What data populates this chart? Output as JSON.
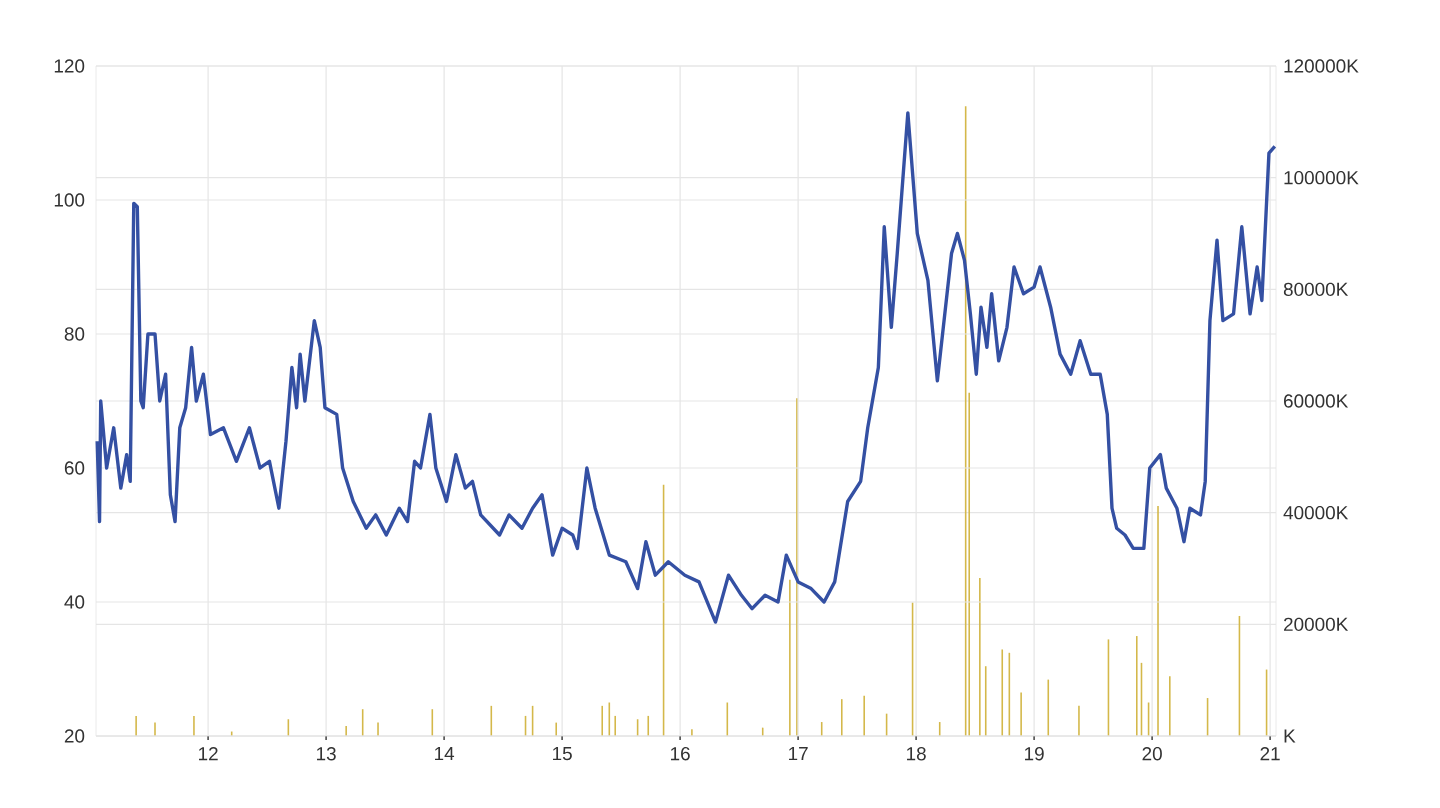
{
  "chart_data": {
    "type": "line",
    "xlim": [
      11.05,
      21.05
    ],
    "xticks": [
      12,
      13,
      14,
      15,
      16,
      17,
      18,
      19,
      20,
      21
    ],
    "ylim": [
      20,
      120
    ],
    "yticks": [
      20,
      40,
      60,
      80,
      100,
      120
    ],
    "y2lim": [
      0,
      120000
    ],
    "y2ticks": [
      {
        "value": 0,
        "label": "K"
      },
      {
        "value": 20000,
        "label": "20000K"
      },
      {
        "value": 40000,
        "label": "40000K"
      },
      {
        "value": 60000,
        "label": "60000K"
      },
      {
        "value": 80000,
        "label": "80000K"
      },
      {
        "value": 100000,
        "label": "100000K"
      },
      {
        "value": 120000,
        "label": "120000K"
      }
    ],
    "grid": true,
    "series": [
      {
        "type": "bar",
        "axis": "y2",
        "color": "#d4b84a",
        "x": [
          11.39,
          11.55,
          11.88,
          12.2,
          12.68,
          13.17,
          13.31,
          13.44,
          13.9,
          14.4,
          14.69,
          14.75,
          14.95,
          15.34,
          15.4,
          15.45,
          15.64,
          15.73,
          15.86,
          16.1,
          16.4,
          16.7,
          16.93,
          16.99,
          17.2,
          17.37,
          17.56,
          17.75,
          17.97,
          18.2,
          18.42,
          18.45,
          18.54,
          18.59,
          18.73,
          18.79,
          18.89,
          19.12,
          19.38,
          19.63,
          19.87,
          19.91,
          19.97,
          20.05,
          20.15,
          20.47,
          20.74,
          20.97
        ],
        "values": [
          3600,
          2400,
          3600,
          800,
          3000,
          1800,
          4800,
          2400,
          4800,
          5400,
          3600,
          5400,
          2400,
          5400,
          6000,
          3600,
          3000,
          3600,
          45000,
          1200,
          6000,
          1500,
          28000,
          60500,
          2500,
          6600,
          7200,
          4000,
          23900,
          2500,
          112800,
          61500,
          28300,
          12500,
          15500,
          14900,
          7800,
          10100,
          5400,
          17300,
          17900,
          13100,
          6000,
          41200,
          10700,
          6800,
          21500,
          11900
        ]
      },
      {
        "color": "#3450a3",
        "x": [
          11.06,
          11.08,
          11.09,
          11.14,
          11.2,
          11.26,
          11.31,
          11.34,
          11.37,
          11.4,
          11.43,
          11.45,
          11.49,
          11.55,
          11.59,
          11.64,
          11.68,
          11.72,
          11.76,
          11.81,
          11.86,
          11.9,
          11.96,
          12.02,
          12.13,
          12.24,
          12.35,
          12.44,
          12.52,
          12.6,
          12.66,
          12.71,
          12.75,
          12.78,
          12.82,
          12.9,
          12.95,
          12.99,
          13.09,
          13.14,
          13.23,
          13.34,
          13.42,
          13.51,
          13.62,
          13.69,
          13.75,
          13.8,
          13.88,
          13.93,
          14.02,
          14.1,
          14.18,
          14.24,
          14.31,
          14.47,
          14.55,
          14.66,
          14.75,
          14.83,
          14.92,
          15.0,
          15.09,
          15.13,
          15.21,
          15.28,
          15.4,
          15.54,
          15.64,
          15.71,
          15.79,
          15.9,
          16.04,
          16.16,
          16.3,
          16.41,
          16.52,
          16.61,
          16.72,
          16.83,
          16.9,
          17.0,
          17.11,
          17.22,
          17.31,
          17.42,
          17.53,
          17.59,
          17.68,
          17.73,
          17.79,
          17.84,
          17.93,
          18.01,
          18.1,
          18.18,
          18.3,
          18.35,
          18.41,
          18.46,
          18.51,
          18.55,
          18.6,
          18.64,
          18.7,
          18.77,
          18.83,
          18.91,
          19.0,
          19.05,
          19.14,
          19.22,
          19.31,
          19.39,
          19.48,
          19.56,
          19.62,
          19.66,
          19.7,
          19.77,
          19.84,
          19.93,
          19.98,
          20.07,
          20.12,
          20.21,
          20.27,
          20.32,
          20.41,
          20.45,
          20.49,
          20.55,
          20.6,
          20.69,
          20.76,
          20.83,
          20.89,
          20.93,
          20.99,
          21.04
        ],
        "values": [
          64,
          52,
          70,
          60,
          66,
          57,
          62,
          58,
          99.5,
          99,
          70,
          69,
          80,
          80,
          70,
          74,
          56,
          52,
          66,
          69,
          78,
          70,
          74,
          65,
          66,
          61,
          66,
          60,
          61,
          54,
          64,
          75,
          69,
          77,
          70,
          82,
          78,
          69,
          68,
          60,
          55,
          51,
          53,
          50,
          54,
          52,
          61,
          60,
          68,
          60,
          55,
          62,
          57,
          58,
          53,
          50,
          53,
          51,
          54,
          56,
          47,
          51,
          50,
          48,
          60,
          54,
          47,
          46,
          42,
          49,
          44,
          46,
          44,
          43,
          37,
          44,
          41,
          39,
          41,
          40,
          47,
          43,
          42,
          40,
          43,
          55,
          58,
          66,
          75,
          96,
          81,
          92,
          113,
          95,
          88,
          73,
          92,
          95,
          91,
          83,
          74,
          84,
          78,
          86,
          76,
          81,
          90,
          86,
          87,
          90,
          84,
          77,
          74,
          79,
          74,
          74,
          68,
          54,
          51,
          50,
          48,
          48,
          60,
          62,
          57,
          54,
          49,
          54,
          53,
          58,
          82,
          94,
          82,
          83,
          96,
          83,
          90,
          85,
          107,
          108
        ]
      }
    ]
  }
}
